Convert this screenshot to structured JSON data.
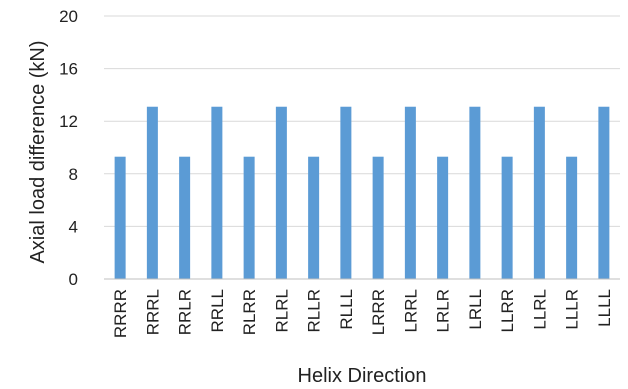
{
  "chart_data": {
    "type": "bar",
    "title": "",
    "xlabel": "Helix Direction",
    "ylabel": "Axial load difference (kN)",
    "categories": [
      "RRRR",
      "RRRL",
      "RRLR",
      "RRLL",
      "RLRR",
      "RLRL",
      "RLLR",
      "RLLL",
      "LRRR",
      "LRRL",
      "LRLR",
      "LRLL",
      "LLRR",
      "LLRL",
      "LLLR",
      "LLLL"
    ],
    "values": [
      9.3,
      13.1,
      9.3,
      13.1,
      9.3,
      13.1,
      9.3,
      13.1,
      9.3,
      13.1,
      9.3,
      13.1,
      9.3,
      13.1,
      9.3,
      13.1
    ],
    "ylim": [
      0,
      20
    ],
    "yticks": [
      0,
      4,
      8,
      12,
      16,
      20
    ],
    "ytick_labels": [
      "0",
      "4",
      "8",
      "12",
      "16",
      "20"
    ],
    "grid": true,
    "legend": "none",
    "colors": {
      "bar": "#5b9bd5",
      "grid": "#d9d9d9",
      "axis": "#bfbfbf",
      "text": "#222222"
    }
  }
}
